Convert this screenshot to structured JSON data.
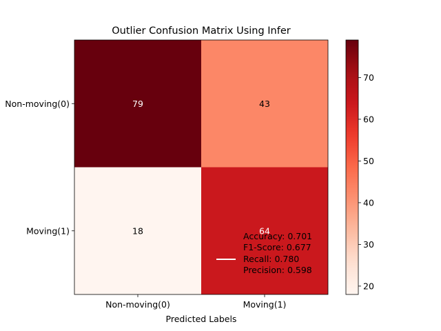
{
  "chart_data": {
    "type": "heatmap",
    "title": "Outlier Confusion Matrix Using Infer",
    "xlabel": "Predicted Labels",
    "ylabel": "",
    "x_categories": [
      "Non-moving(0)",
      "Moving(1)"
    ],
    "y_categories": [
      "Non-moving(0)",
      "Moving(1)"
    ],
    "matrix": [
      [
        79,
        43
      ],
      [
        18,
        64
      ]
    ],
    "colormap": "Reds",
    "colorbar": {
      "min": 18,
      "max": 79,
      "ticks": [
        20,
        30,
        40,
        50,
        60,
        70
      ]
    },
    "legend": {
      "placement": "lower-right",
      "line_color": "#ffffff",
      "lines": [
        "Accuracy: 0.701",
        "F1-Score: 0.677",
        "Recall: 0.780",
        "Precision: 0.598"
      ]
    }
  }
}
